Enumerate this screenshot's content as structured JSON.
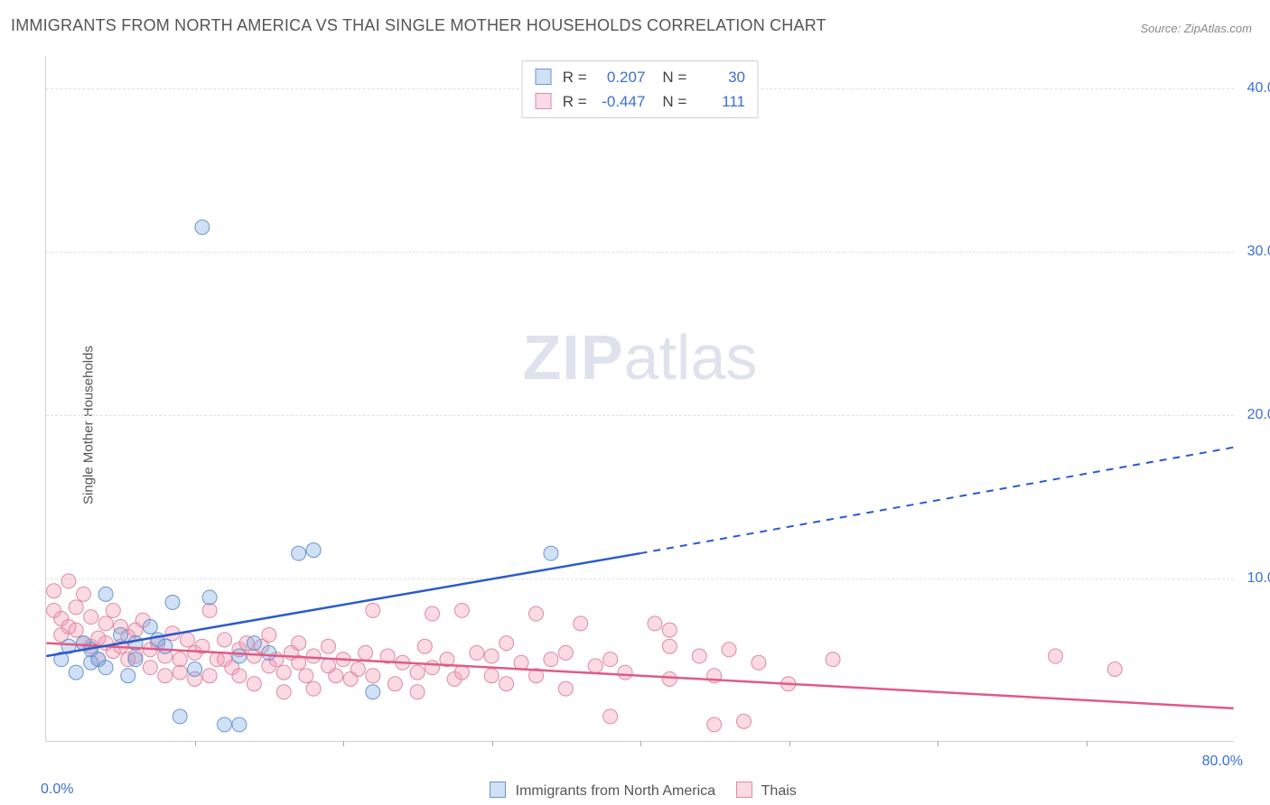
{
  "title": "IMMIGRANTS FROM NORTH AMERICA VS THAI SINGLE MOTHER HOUSEHOLDS CORRELATION CHART",
  "source_prefix": "Source: ",
  "source": "ZipAtlas.com",
  "y_axis_label": "Single Mother Households",
  "watermark_zip": "ZIP",
  "watermark_atlas": "atlas",
  "chart": {
    "type": "scatter",
    "xlim": [
      0,
      80
    ],
    "ylim": [
      0,
      42
    ],
    "x_tick_step": 10,
    "y_ticks": [
      10,
      20,
      30,
      40
    ],
    "x_start_label": "0.0%",
    "x_end_label": "80.0%",
    "background": "#ffffff",
    "grid_color": "#e0e0e0",
    "axis_color": "#cfcfcf",
    "tick_label_color": "#3b6fd6"
  },
  "series": {
    "a": {
      "legend_label": "Immigrants from North America",
      "fill": "rgba(120,165,225,0.35)",
      "stroke": "#6a94cf",
      "line_stroke": "#2a5bcc",
      "marker_r": 8,
      "R_label": "R =",
      "R": "0.207",
      "N_label": "N =",
      "N": "30",
      "points": [
        [
          1,
          5
        ],
        [
          1.5,
          5.8
        ],
        [
          2,
          4.2
        ],
        [
          2.5,
          6
        ],
        [
          3,
          4.8
        ],
        [
          3,
          5.6
        ],
        [
          3.5,
          5
        ],
        [
          4,
          4.5
        ],
        [
          4,
          9
        ],
        [
          5,
          6.5
        ],
        [
          5.5,
          4
        ],
        [
          6,
          6
        ],
        [
          6,
          5
        ],
        [
          7,
          7
        ],
        [
          7.5,
          6.2
        ],
        [
          8,
          5.8
        ],
        [
          8.5,
          8.5
        ],
        [
          9,
          1.5
        ],
        [
          10,
          4.4
        ],
        [
          11,
          8.8
        ],
        [
          12,
          1
        ],
        [
          13,
          5.2
        ],
        [
          13,
          1
        ],
        [
          14,
          6
        ],
        [
          15,
          5.4
        ],
        [
          17,
          11.5
        ],
        [
          18,
          11.7
        ],
        [
          22,
          3
        ],
        [
          34,
          11.5
        ],
        [
          10.5,
          31.5
        ]
      ],
      "trend": {
        "x1": 0,
        "y1": 5.2,
        "x2_solid": 40,
        "y2_solid": 11.5,
        "x2": 80,
        "y2": 18
      }
    },
    "b": {
      "legend_label": "Thais",
      "fill": "rgba(240,150,175,0.35)",
      "stroke": "#df8aa2",
      "line_stroke": "#e05a85",
      "marker_r": 8,
      "R_label": "R =",
      "R": "-0.447",
      "N_label": "N =",
      "N": "111",
      "points": [
        [
          0.5,
          8
        ],
        [
          0.5,
          9.2
        ],
        [
          1,
          7.5
        ],
        [
          1,
          6.5
        ],
        [
          1.5,
          9.8
        ],
        [
          1.5,
          7
        ],
        [
          2,
          6.8
        ],
        [
          2,
          8.2
        ],
        [
          2.5,
          6
        ],
        [
          2.5,
          9
        ],
        [
          3,
          5.8
        ],
        [
          3,
          7.6
        ],
        [
          3.5,
          6.3
        ],
        [
          3.5,
          5
        ],
        [
          4,
          7.2
        ],
        [
          4,
          6
        ],
        [
          4.5,
          5.5
        ],
        [
          4.5,
          8
        ],
        [
          5,
          5.8
        ],
        [
          5,
          7
        ],
        [
          5.5,
          6.4
        ],
        [
          5.5,
          5
        ],
        [
          6,
          6.8
        ],
        [
          6,
          5.2
        ],
        [
          6.5,
          7.4
        ],
        [
          7,
          5.6
        ],
        [
          7,
          4.5
        ],
        [
          7.5,
          6
        ],
        [
          8,
          5.2
        ],
        [
          8,
          4
        ],
        [
          8.5,
          6.6
        ],
        [
          9,
          5
        ],
        [
          9,
          4.2
        ],
        [
          9.5,
          6.2
        ],
        [
          10,
          5.4
        ],
        [
          10,
          3.8
        ],
        [
          10.5,
          5.8
        ],
        [
          11,
          8
        ],
        [
          11,
          4
        ],
        [
          11.5,
          5
        ],
        [
          12,
          6.2
        ],
        [
          12,
          5
        ],
        [
          12.5,
          4.5
        ],
        [
          13,
          5.6
        ],
        [
          13,
          4
        ],
        [
          13.5,
          6
        ],
        [
          14,
          5.2
        ],
        [
          14,
          3.5
        ],
        [
          14.5,
          5.8
        ],
        [
          15,
          6.5
        ],
        [
          15,
          4.6
        ],
        [
          15.5,
          5
        ],
        [
          16,
          4.2
        ],
        [
          16,
          3
        ],
        [
          16.5,
          5.4
        ],
        [
          17,
          6
        ],
        [
          17,
          4.8
        ],
        [
          17.5,
          4
        ],
        [
          18,
          5.2
        ],
        [
          18,
          3.2
        ],
        [
          19,
          4.6
        ],
        [
          19,
          5.8
        ],
        [
          19.5,
          4
        ],
        [
          20,
          5
        ],
        [
          20.5,
          3.8
        ],
        [
          21,
          4.4
        ],
        [
          21.5,
          5.4
        ],
        [
          22,
          8
        ],
        [
          22,
          4
        ],
        [
          23,
          5.2
        ],
        [
          23.5,
          3.5
        ],
        [
          24,
          4.8
        ],
        [
          25,
          4.2
        ],
        [
          25,
          3
        ],
        [
          25.5,
          5.8
        ],
        [
          26,
          7.8
        ],
        [
          26,
          4.5
        ],
        [
          27,
          5
        ],
        [
          27.5,
          3.8
        ],
        [
          28,
          4.2
        ],
        [
          28,
          8
        ],
        [
          29,
          5.4
        ],
        [
          30,
          4
        ],
        [
          30,
          5.2
        ],
        [
          31,
          6
        ],
        [
          31,
          3.5
        ],
        [
          32,
          4.8
        ],
        [
          33,
          4
        ],
        [
          33,
          7.8
        ],
        [
          34,
          5
        ],
        [
          35,
          3.2
        ],
        [
          35,
          5.4
        ],
        [
          36,
          7.2
        ],
        [
          37,
          4.6
        ],
        [
          38,
          5
        ],
        [
          38,
          1.5
        ],
        [
          39,
          4.2
        ],
        [
          41,
          7.2
        ],
        [
          42,
          5.8
        ],
        [
          42,
          3.8
        ],
        [
          42,
          6.8
        ],
        [
          44,
          5.2
        ],
        [
          45,
          4
        ],
        [
          45,
          1
        ],
        [
          46,
          5.6
        ],
        [
          47,
          1.2
        ],
        [
          48,
          4.8
        ],
        [
          50,
          3.5
        ],
        [
          53,
          5
        ],
        [
          68,
          5.2
        ],
        [
          72,
          4.4
        ]
      ],
      "trend": {
        "x1": 0,
        "y1": 6,
        "x2_solid": 80,
        "y2_solid": 2,
        "x2": 80,
        "y2": 2
      }
    }
  }
}
